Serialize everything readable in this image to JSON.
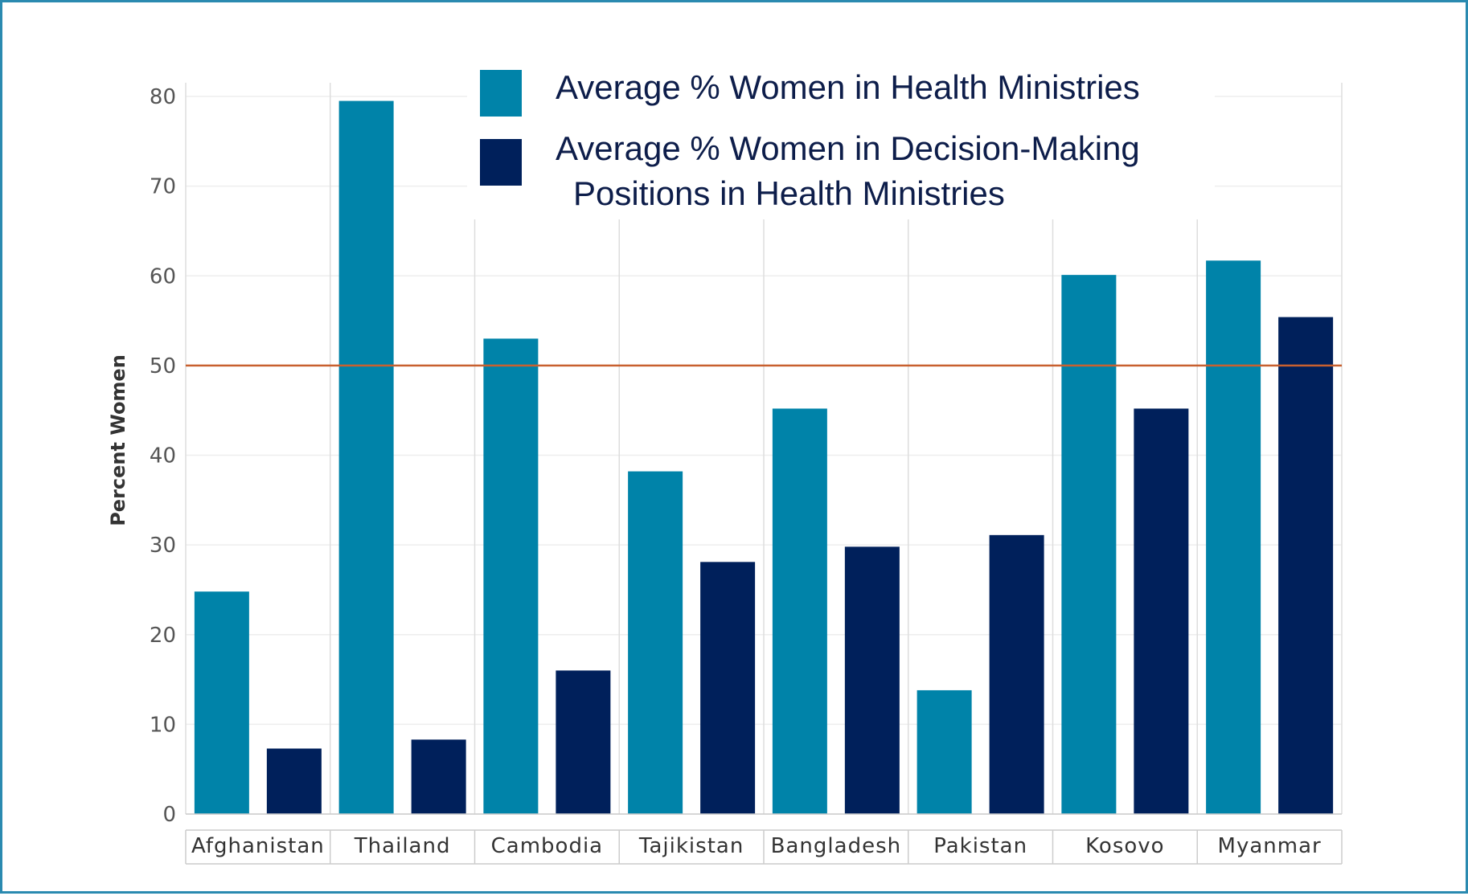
{
  "chart_data": {
    "type": "bar",
    "title": "",
    "xlabel": "",
    "ylabel": "Percent Women",
    "ylim": [
      0,
      80
    ],
    "yticks": [
      0,
      10,
      20,
      30,
      40,
      50,
      60,
      70,
      80
    ],
    "grid": true,
    "legend_position": "top",
    "categories": [
      "Afghanistan",
      "Thailand",
      "Cambodia",
      "Tajikistan",
      "Bangladesh",
      "Pakistan",
      "Kosovo",
      "Myanmar"
    ],
    "series": [
      {
        "name": "Average % Women in Health Ministries",
        "color": "#0083a9",
        "values": [
          24.8,
          79.5,
          53.0,
          38.2,
          45.2,
          13.8,
          60.1,
          61.7
        ]
      },
      {
        "name": "Average % Women in Decision-Making Positions in Health Ministries",
        "name_lines": [
          "Average % Women in Decision-Making",
          "Positions in Health Ministries"
        ],
        "color": "#00205b",
        "values": [
          7.3,
          8.3,
          16.0,
          28.1,
          29.8,
          31.1,
          45.2,
          55.4
        ]
      }
    ],
    "reference_line": {
      "value": 50,
      "color": "#c8602f"
    }
  }
}
